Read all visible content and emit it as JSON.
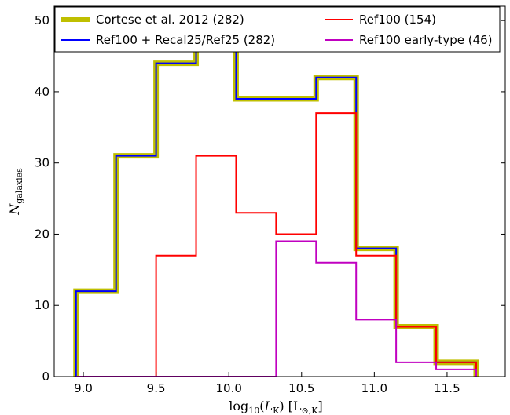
{
  "chart_data": {
    "type": "histogram",
    "xlabel": "log10(LK) [L⊙,K]",
    "ylabel": "Ngalaxies",
    "xlim": [
      8.8,
      11.9
    ],
    "ylim": [
      0,
      52
    ],
    "x_ticks": [
      "9.0",
      "9.5",
      "10.0",
      "10.5",
      "11.0",
      "11.5"
    ],
    "y_ticks": [
      "0",
      "10",
      "20",
      "30",
      "40",
      "50"
    ],
    "grid": false,
    "legend_position": "top",
    "bin_edges": [
      8.95,
      9.225,
      9.5,
      9.775,
      10.05,
      10.325,
      10.6,
      10.875,
      11.15,
      11.425,
      11.7
    ],
    "series": [
      {
        "name": "Cortese et al. 2012 (282)",
        "color": "#bfbf00",
        "style": "thick",
        "values": [
          12,
          31,
          44,
          48,
          39,
          39,
          42,
          18,
          7,
          2
        ]
      },
      {
        "name": "Ref100 + Recal25/Ref25 (282)",
        "color": "#0000ff",
        "style": "thin",
        "values": [
          12,
          31,
          44,
          48,
          39,
          39,
          42,
          18,
          7,
          2
        ]
      },
      {
        "name": "Ref100 (154)",
        "color": "#ff0000",
        "style": "thin",
        "values": [
          0,
          0,
          17,
          31,
          23,
          20,
          37,
          17,
          7,
          2
        ]
      },
      {
        "name": "Ref100 early-type (46)",
        "color": "#c000c0",
        "style": "thin",
        "values": [
          0,
          0,
          0,
          0,
          0,
          19,
          16,
          8,
          2,
          1
        ]
      }
    ]
  }
}
